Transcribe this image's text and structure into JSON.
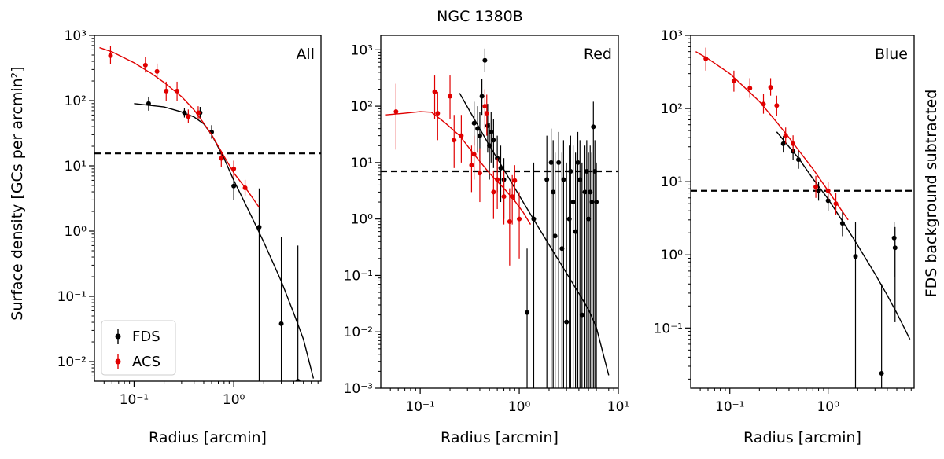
{
  "figure": {
    "title": "NGC 1380B",
    "ylabel": "Surface density [GCs per arcmin²]",
    "right_label": "FDS background subtracted"
  },
  "colors": {
    "fds": "#000000",
    "acs": "#e00000"
  },
  "legend": {
    "position": "lower-left",
    "items": [
      {
        "label": "FDS",
        "color": "#000000"
      },
      {
        "label": "ACS",
        "color": "#e00000"
      }
    ]
  },
  "chart_data": [
    {
      "type": "scatter",
      "label": "All",
      "xlabel": "Radius [arcmin]",
      "xscale": "log",
      "yscale": "log",
      "xlim": [
        0.04,
        7.5
      ],
      "ylim": [
        0.005,
        1000
      ],
      "xticks": [
        {
          "v": 0.1,
          "label": "10⁻¹"
        },
        {
          "v": 1,
          "label": "10⁰"
        }
      ],
      "yticks": [
        {
          "v": 0.01,
          "label": "10⁻²"
        },
        {
          "v": 0.1,
          "label": "10⁻¹"
        },
        {
          "v": 1,
          "label": "10⁰"
        },
        {
          "v": 10,
          "label": "10¹"
        },
        {
          "v": 100,
          "label": "10²"
        },
        {
          "v": 1000,
          "label": "10³"
        }
      ],
      "background_level": 15.5,
      "series": [
        {
          "name": "FDS",
          "color": "#000000",
          "points": [
            [
              0.14,
              90,
              70,
              115
            ],
            [
              0.32,
              65,
              55,
              77
            ],
            [
              0.46,
              65,
              52,
              80
            ],
            [
              0.6,
              33,
              26,
              42
            ],
            [
              1.0,
              4.9,
              3.0,
              7.8
            ],
            [
              1.8,
              1.15,
              0.005,
              4.5
            ],
            [
              3.0,
              0.038,
              0.005,
              0.8
            ],
            [
              4.4,
              0.005,
              0.005,
              0.6
            ]
          ],
          "fit": [
            [
              0.1,
              90
            ],
            [
              0.2,
              80
            ],
            [
              0.3,
              67
            ],
            [
              0.4,
              56
            ],
            [
              0.5,
              44
            ],
            [
              0.6,
              30
            ],
            [
              0.8,
              13
            ],
            [
              1.0,
              6.0
            ],
            [
              1.5,
              1.7
            ],
            [
              2.0,
              0.68
            ],
            [
              3.0,
              0.17
            ],
            [
              4.0,
              0.055
            ],
            [
              5.0,
              0.022
            ],
            [
              6.3,
              0.0055
            ]
          ]
        },
        {
          "name": "ACS",
          "color": "#e00000",
          "points": [
            [
              0.058,
              490,
              360,
              680
            ],
            [
              0.13,
              350,
              270,
              460
            ],
            [
              0.17,
              280,
              210,
              370
            ],
            [
              0.21,
              140,
              100,
              195
            ],
            [
              0.27,
              140,
              100,
              195
            ],
            [
              0.35,
              57,
              45,
              73
            ],
            [
              0.44,
              65,
              52,
              82
            ],
            [
              0.75,
              13,
              9.5,
              17
            ],
            [
              1.0,
              9.0,
              6.6,
              12
            ],
            [
              1.3,
              4.6,
              3.5,
              6.1
            ]
          ],
          "fit": [
            [
              0.045,
              650
            ],
            [
              0.06,
              560
            ],
            [
              0.1,
              380
            ],
            [
              0.15,
              260
            ],
            [
              0.2,
              190
            ],
            [
              0.3,
              115
            ],
            [
              0.4,
              72
            ],
            [
              0.5,
              45
            ],
            [
              0.6,
              30
            ],
            [
              0.8,
              14
            ],
            [
              1.0,
              7.8
            ],
            [
              1.4,
              4.0
            ],
            [
              1.8,
              2.3
            ]
          ]
        }
      ]
    },
    {
      "type": "scatter",
      "label": "Red",
      "xlabel": "Radius [arcmin]",
      "xscale": "log",
      "yscale": "log",
      "xlim": [
        0.04,
        10
      ],
      "ylim": [
        0.001,
        1800
      ],
      "xticks": [
        {
          "v": 0.1,
          "label": "10⁻¹"
        },
        {
          "v": 1,
          "label": "10⁰"
        },
        {
          "v": 10,
          "label": "10¹"
        }
      ],
      "yticks": [
        {
          "v": 0.001,
          "label": "10⁻³"
        },
        {
          "v": 0.01,
          "label": "10⁻²"
        },
        {
          "v": 0.1,
          "label": "10⁻¹"
        },
        {
          "v": 1,
          "label": "10⁰"
        },
        {
          "v": 10,
          "label": "10¹"
        },
        {
          "v": 100,
          "label": "10²"
        },
        {
          "v": 1000,
          "label": "10³"
        }
      ],
      "background_level": 7.0,
      "series": [
        {
          "name": "FDS",
          "color": "#000000",
          "points": [
            [
              0.45,
              650,
              400,
              1050
            ],
            [
              0.42,
              150,
              70,
              300
            ],
            [
              0.35,
              50,
              20,
              120
            ],
            [
              0.38,
              40,
              15,
              100
            ],
            [
              0.4,
              30,
              10,
              80
            ],
            [
              0.48,
              45,
              15,
              110
            ],
            [
              0.5,
              20,
              5,
              50
            ],
            [
              0.52,
              35,
              10,
              80
            ],
            [
              0.55,
              25,
              8,
              60
            ],
            [
              0.6,
              12,
              3,
              30
            ],
            [
              0.65,
              8,
              2,
              20
            ],
            [
              0.7,
              5,
              1,
              12
            ],
            [
              1.2,
              0.022,
              0.001,
              0.3
            ],
            [
              1.4,
              1.0,
              0.001,
              10
            ],
            [
              1.9,
              5,
              0.001,
              30
            ],
            [
              2.1,
              10,
              0.001,
              40
            ],
            [
              2.2,
              3,
              0.001,
              25
            ],
            [
              2.3,
              0.5,
              0.001,
              15
            ],
            [
              2.5,
              10,
              0.001,
              35
            ],
            [
              2.7,
              0.3,
              0.001,
              15
            ],
            [
              2.8,
              5,
              0.001,
              25
            ],
            [
              3.0,
              0.015,
              0.001,
              10
            ],
            [
              3.2,
              1.0,
              0.001,
              20
            ],
            [
              3.3,
              7,
              0.001,
              30
            ],
            [
              3.5,
              2,
              0.001,
              20
            ],
            [
              3.7,
              0.6,
              0.001,
              15
            ],
            [
              3.9,
              10,
              0.001,
              35
            ],
            [
              4.1,
              5,
              0.001,
              25
            ],
            [
              4.3,
              0.02,
              0.001,
              10
            ],
            [
              4.6,
              3,
              0.001,
              20
            ],
            [
              4.8,
              7,
              0.001,
              25
            ],
            [
              5.0,
              1,
              0.001,
              15
            ],
            [
              5.2,
              3,
              0.001,
              20
            ],
            [
              5.4,
              2,
              0.001,
              15
            ],
            [
              5.6,
              43,
              0.001,
              120
            ],
            [
              5.8,
              7,
              0.001,
              25
            ],
            [
              6.0,
              2,
              0.001,
              10
            ]
          ],
          "fit": [
            [
              0.25,
              170
            ],
            [
              0.35,
              60
            ],
            [
              0.5,
              20
            ],
            [
              0.7,
              7.5
            ],
            [
              1.0,
              2.6
            ],
            [
              1.5,
              0.8
            ],
            [
              2.0,
              0.35
            ],
            [
              3.0,
              0.11
            ],
            [
              4.0,
              0.048
            ],
            [
              5.0,
              0.025
            ],
            [
              6.0,
              0.012
            ],
            [
              8.0,
              0.0017
            ]
          ]
        },
        {
          "name": "ACS",
          "color": "#e00000",
          "points": [
            [
              0.057,
              80,
              17,
              250
            ],
            [
              0.14,
              180,
              60,
              350
            ],
            [
              0.15,
              75,
              25,
              180
            ],
            [
              0.2,
              150,
              60,
              350
            ],
            [
              0.22,
              25,
              8,
              70
            ],
            [
              0.26,
              30,
              10,
              70
            ],
            [
              0.33,
              9,
              3,
              20
            ],
            [
              0.35,
              14,
              5,
              30
            ],
            [
              0.4,
              6.5,
              2,
              18
            ],
            [
              0.45,
              100,
              40,
              200
            ],
            [
              0.47,
              75,
              30,
              160
            ],
            [
              0.55,
              3,
              1,
              7
            ],
            [
              0.6,
              5,
              1.5,
              12
            ],
            [
              0.7,
              2.5,
              0.8,
              7
            ],
            [
              0.8,
              0.9,
              0.15,
              3.5
            ],
            [
              0.85,
              2.5,
              0.8,
              6
            ],
            [
              0.9,
              4.8,
              2,
              9
            ],
            [
              1.0,
              1.0,
              0.2,
              3
            ]
          ],
          "fit": [
            [
              0.045,
              70
            ],
            [
              0.07,
              75
            ],
            [
              0.1,
              80
            ],
            [
              0.13,
              78
            ],
            [
              0.18,
              50
            ],
            [
              0.25,
              30
            ],
            [
              0.35,
              14
            ],
            [
              0.5,
              6.5
            ],
            [
              0.7,
              3.5
            ],
            [
              0.9,
              2.1
            ],
            [
              1.1,
              1.3
            ],
            [
              1.3,
              0.8
            ]
          ]
        }
      ]
    },
    {
      "type": "scatter",
      "label": "Blue",
      "xlabel": "Radius [arcmin]",
      "xscale": "log",
      "yscale": "log",
      "xlim": [
        0.04,
        7.5
      ],
      "ylim": [
        0.015,
        1000
      ],
      "xticks": [
        {
          "v": 0.1,
          "label": "10⁻¹"
        },
        {
          "v": 1,
          "label": "10⁰"
        }
      ],
      "yticks": [
        {
          "v": 0.1,
          "label": "10⁻¹"
        },
        {
          "v": 1,
          "label": "10⁰"
        },
        {
          "v": 10,
          "label": "10¹"
        },
        {
          "v": 100,
          "label": "10²"
        },
        {
          "v": 1000,
          "label": "10³"
        }
      ],
      "background_level": 7.5,
      "series": [
        {
          "name": "FDS",
          "color": "#000000",
          "points": [
            [
              0.35,
              33,
              25,
              42
            ],
            [
              0.44,
              26,
              20,
              33
            ],
            [
              0.5,
              20,
              15,
              27
            ],
            [
              0.8,
              7.5,
              5.5,
              10
            ],
            [
              1.0,
              5.5,
              4,
              7.5
            ],
            [
              1.4,
              2.7,
              1.8,
              4
            ],
            [
              1.9,
              0.95,
              0.015,
              2.8
            ],
            [
              3.5,
              0.024,
              0.015,
              0.4
            ],
            [
              4.7,
              1.7,
              0.5,
              2.8
            ],
            [
              4.8,
              1.25,
              0.12,
              2.4
            ]
          ],
          "fit": [
            [
              0.3,
              48
            ],
            [
              0.4,
              30
            ],
            [
              0.5,
              21
            ],
            [
              0.7,
              11
            ],
            [
              1.0,
              5.8
            ],
            [
              1.5,
              2.5
            ],
            [
              2.0,
              1.35
            ],
            [
              3.0,
              0.55
            ],
            [
              4.0,
              0.28
            ],
            [
              5.0,
              0.16
            ],
            [
              6.8,
              0.07
            ]
          ]
        },
        {
          "name": "ACS",
          "color": "#e00000",
          "points": [
            [
              0.057,
              480,
              330,
              680
            ],
            [
              0.11,
              240,
              170,
              330
            ],
            [
              0.16,
              190,
              140,
              260
            ],
            [
              0.22,
              115,
              85,
              160
            ],
            [
              0.26,
              195,
              150,
              260
            ],
            [
              0.3,
              110,
              80,
              150
            ],
            [
              0.37,
              43,
              33,
              55
            ],
            [
              0.44,
              33,
              25,
              43
            ],
            [
              0.75,
              8.5,
              6,
              12
            ],
            [
              1.0,
              7.5,
              5.5,
              10
            ],
            [
              1.2,
              5.0,
              3.5,
              7
            ]
          ],
          "fit": [
            [
              0.045,
              600
            ],
            [
              0.06,
              480
            ],
            [
              0.1,
              300
            ],
            [
              0.15,
              180
            ],
            [
              0.2,
              125
            ],
            [
              0.3,
              65
            ],
            [
              0.4,
              40
            ],
            [
              0.5,
              27
            ],
            [
              0.7,
              15
            ],
            [
              1.0,
              7.5
            ],
            [
              1.3,
              4.5
            ],
            [
              1.6,
              3.0
            ]
          ]
        }
      ]
    }
  ]
}
